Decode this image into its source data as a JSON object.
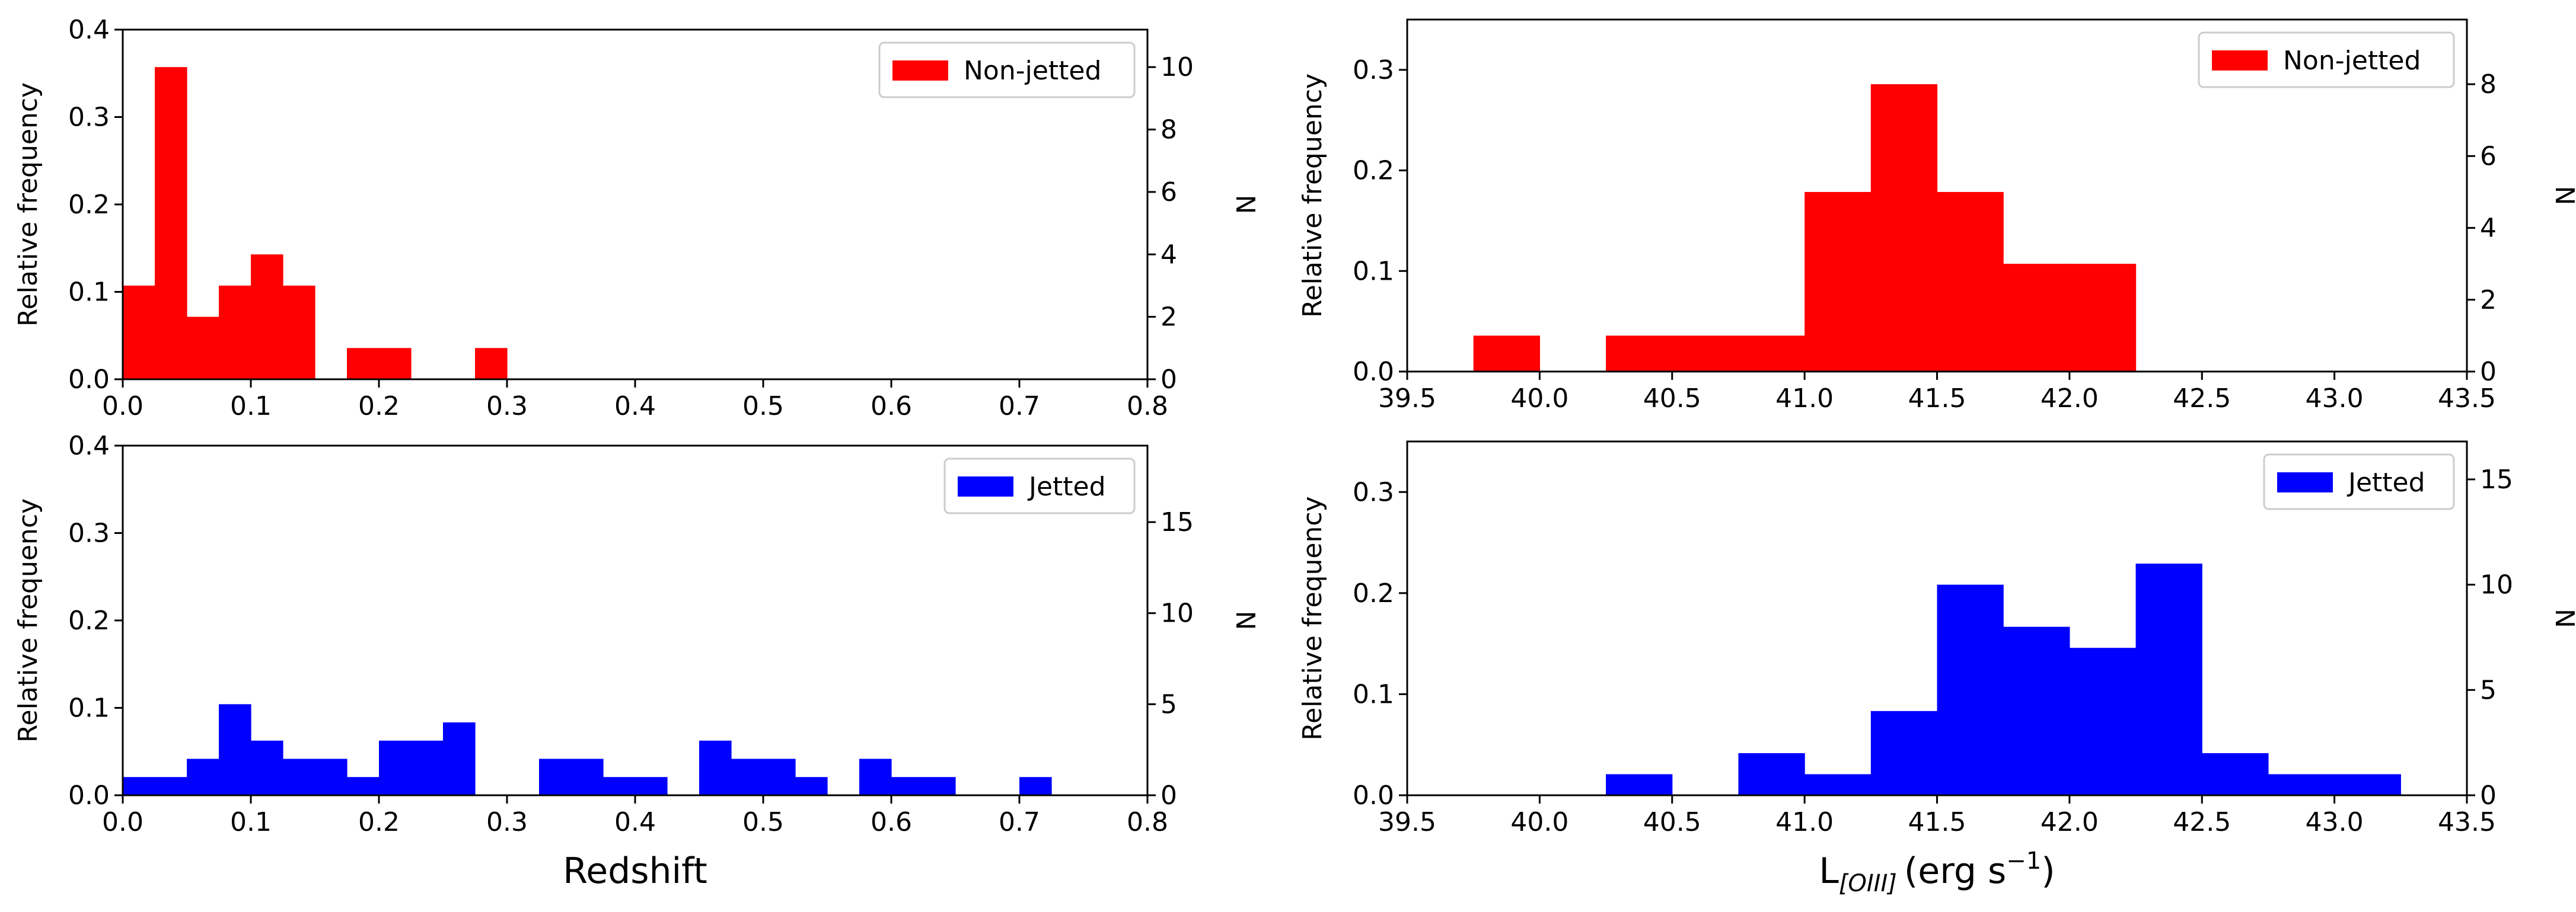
{
  "chart_data": [
    {
      "type": "bar",
      "position": "top-left",
      "x": "Redshift",
      "xlabel": "",
      "ylabel": "Relative frequency",
      "y2label": "N",
      "xlim": [
        0.0,
        0.8
      ],
      "ylim": [
        0.0,
        0.4
      ],
      "y2lim": [
        0,
        11.2
      ],
      "xticks": [
        0.0,
        0.1,
        0.2,
        0.3,
        0.4,
        0.5,
        0.6,
        0.7,
        0.8
      ],
      "xtick_labels": [
        "0.0",
        "0.1",
        "0.2",
        "0.3",
        "0.4",
        "0.5",
        "0.6",
        "0.7",
        "0.8"
      ],
      "yticks": [
        0.0,
        0.1,
        0.2,
        0.3,
        0.4
      ],
      "ytick_labels": [
        "0.0",
        "0.1",
        "0.2",
        "0.3",
        "0.4"
      ],
      "y2ticks": [
        0,
        2,
        4,
        6,
        8,
        10
      ],
      "y2tick_labels": [
        "0",
        "2",
        "4",
        "6",
        "8",
        "10"
      ],
      "legend": {
        "label": "Non-jetted",
        "loc": "upper right"
      },
      "color": "#ff0000",
      "bin_width": 0.025,
      "bins_left": [
        0.0,
        0.025,
        0.05,
        0.075,
        0.1,
        0.125,
        0.175,
        0.2,
        0.275
      ],
      "counts": [
        3,
        10,
        2,
        3,
        4,
        3,
        1,
        1,
        1
      ]
    },
    {
      "type": "bar",
      "position": "bottom-left",
      "xlabel": "Redshift",
      "ylabel": "Relative frequency",
      "y2label": "N",
      "xlim": [
        0.0,
        0.8
      ],
      "ylim": [
        0.0,
        0.4
      ],
      "y2lim": [
        0,
        19.2
      ],
      "xticks": [
        0.0,
        0.1,
        0.2,
        0.3,
        0.4,
        0.5,
        0.6,
        0.7,
        0.8
      ],
      "xtick_labels": [
        "0.0",
        "0.1",
        "0.2",
        "0.3",
        "0.4",
        "0.5",
        "0.6",
        "0.7",
        "0.8"
      ],
      "yticks": [
        0.0,
        0.1,
        0.2,
        0.3,
        0.4
      ],
      "ytick_labels": [
        "0.0",
        "0.1",
        "0.2",
        "0.3",
        "0.4"
      ],
      "y2ticks": [
        0,
        5,
        10,
        15
      ],
      "y2tick_labels": [
        "0",
        "5",
        "10",
        "15"
      ],
      "legend": {
        "label": "Jetted",
        "loc": "upper right"
      },
      "color": "#0000ff",
      "bin_width": 0.025,
      "bins_left": [
        0.0,
        0.025,
        0.05,
        0.075,
        0.1,
        0.125,
        0.15,
        0.175,
        0.2,
        0.225,
        0.25,
        0.325,
        0.35,
        0.375,
        0.4,
        0.45,
        0.475,
        0.5,
        0.525,
        0.575,
        0.6,
        0.625,
        0.7
      ],
      "counts": [
        1,
        1,
        2,
        5,
        3,
        2,
        2,
        1,
        3,
        3,
        4,
        2,
        2,
        1,
        1,
        3,
        2,
        2,
        1,
        2,
        1,
        1,
        1
      ]
    },
    {
      "type": "bar",
      "position": "top-right",
      "xlabel": "",
      "ylabel": "Relative frequency",
      "y2label": "N",
      "xlim": [
        39.5,
        43.5
      ],
      "ylim": [
        0.0,
        0.35
      ],
      "y2lim": [
        0,
        9.8
      ],
      "xticks": [
        39.5,
        40.0,
        40.5,
        41.0,
        41.5,
        42.0,
        42.5,
        43.0,
        43.5
      ],
      "xtick_labels": [
        "39.5",
        "40.0",
        "40.5",
        "41.0",
        "41.5",
        "42.0",
        "42.5",
        "43.0",
        "43.5"
      ],
      "yticks": [
        0.0,
        0.1,
        0.2,
        0.3
      ],
      "ytick_labels": [
        "0.0",
        "0.1",
        "0.2",
        "0.3"
      ],
      "y2ticks": [
        0,
        2,
        4,
        6,
        8
      ],
      "y2tick_labels": [
        "0",
        "2",
        "4",
        "6",
        "8"
      ],
      "legend": {
        "label": "Non-jetted",
        "loc": "upper right"
      },
      "color": "#ff0000",
      "bin_width": 0.25,
      "bins_left": [
        39.75,
        40.25,
        40.5,
        40.75,
        41.0,
        41.25,
        41.5,
        41.75,
        42.0
      ],
      "counts": [
        1,
        1,
        1,
        1,
        5,
        8,
        5,
        3,
        3
      ]
    },
    {
      "type": "bar",
      "position": "bottom-right",
      "xlabel_main": "L",
      "xlabel_sub": "[OIII]",
      "xlabel_unit": "(erg s",
      "xlabel_sup": "−1",
      "xlabel_close": ")",
      "ylabel": "Relative frequency",
      "y2label": "N",
      "xlim": [
        39.5,
        43.5
      ],
      "ylim": [
        0.0,
        0.35
      ],
      "y2lim": [
        0,
        16.8
      ],
      "xticks": [
        39.5,
        40.0,
        40.5,
        41.0,
        41.5,
        42.0,
        42.5,
        43.0,
        43.5
      ],
      "xtick_labels": [
        "39.5",
        "40.0",
        "40.5",
        "41.0",
        "41.5",
        "42.0",
        "42.5",
        "43.0",
        "43.5"
      ],
      "yticks": [
        0.0,
        0.1,
        0.2,
        0.3
      ],
      "ytick_labels": [
        "0.0",
        "0.1",
        "0.2",
        "0.3"
      ],
      "y2ticks": [
        0,
        5,
        10,
        15
      ],
      "y2tick_labels": [
        "0",
        "5",
        "10",
        "15"
      ],
      "legend": {
        "label": "Jetted",
        "loc": "upper right"
      },
      "color": "#0000ff",
      "bin_width": 0.25,
      "bins_left": [
        40.25,
        40.75,
        41.0,
        41.25,
        41.5,
        41.75,
        42.0,
        42.25,
        42.5,
        42.75,
        43.0
      ],
      "counts": [
        1,
        2,
        1,
        4,
        10,
        8,
        7,
        11,
        2,
        1,
        1
      ]
    }
  ]
}
